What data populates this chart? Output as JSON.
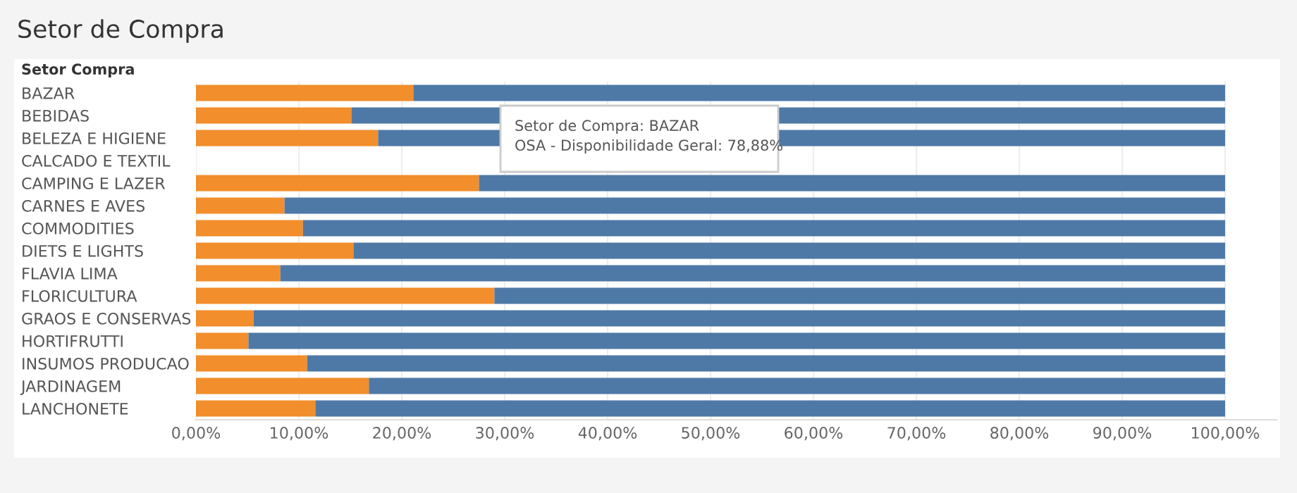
{
  "chart_data": {
    "type": "bar",
    "orientation": "horizontal",
    "stacked": true,
    "title": "Setor de Compra",
    "ylabel": "Setor Compra",
    "categories": [
      "BAZAR",
      "BEBIDAS",
      "BELEZA E HIGIENE",
      "CALCADO E TEXTIL",
      "CAMPING E LAZER",
      "CARNES E AVES",
      "COMMODITIES",
      "DIETS E LIGHTS",
      "FLAVIA LIMA",
      "FLORICULTURA",
      "GRAOS E CONSERVAS",
      "HORTIFRUTTI",
      "INSUMOS PRODUCAO",
      "JARDINAGEM",
      "LANCHONETE"
    ],
    "series": [
      {
        "color": "#f28e2b",
        "values": [
          21.12,
          15.1,
          17.7,
          null,
          27.5,
          8.6,
          10.4,
          15.3,
          8.2,
          29.0,
          5.6,
          5.1,
          10.8,
          16.8,
          11.6
        ]
      },
      {
        "color": "#4e79a7",
        "values": [
          78.88,
          84.9,
          82.3,
          null,
          72.5,
          91.4,
          89.6,
          84.7,
          91.8,
          71.0,
          94.4,
          94.9,
          89.2,
          83.2,
          88.4
        ]
      }
    ],
    "xlim": [
      0,
      105
    ],
    "xticks": [
      {
        "value": 0,
        "label": "0,00%"
      },
      {
        "value": 10,
        "label": "10,00%"
      },
      {
        "value": 20,
        "label": "20,00%"
      },
      {
        "value": 30,
        "label": "30,00%"
      },
      {
        "value": 40,
        "label": "40,00%"
      },
      {
        "value": 50,
        "label": "50,00%"
      },
      {
        "value": 60,
        "label": "60,00%"
      },
      {
        "value": 70,
        "label": "70,00%"
      },
      {
        "value": 80,
        "label": "80,00%"
      },
      {
        "value": 90,
        "label": "90,00%"
      },
      {
        "value": 100,
        "label": "100,00%"
      }
    ],
    "grid": "x",
    "annotations": [
      "Setor de Compra: BAZAR",
      "OSA - Disponibilidade Geral: 78,88%"
    ]
  }
}
